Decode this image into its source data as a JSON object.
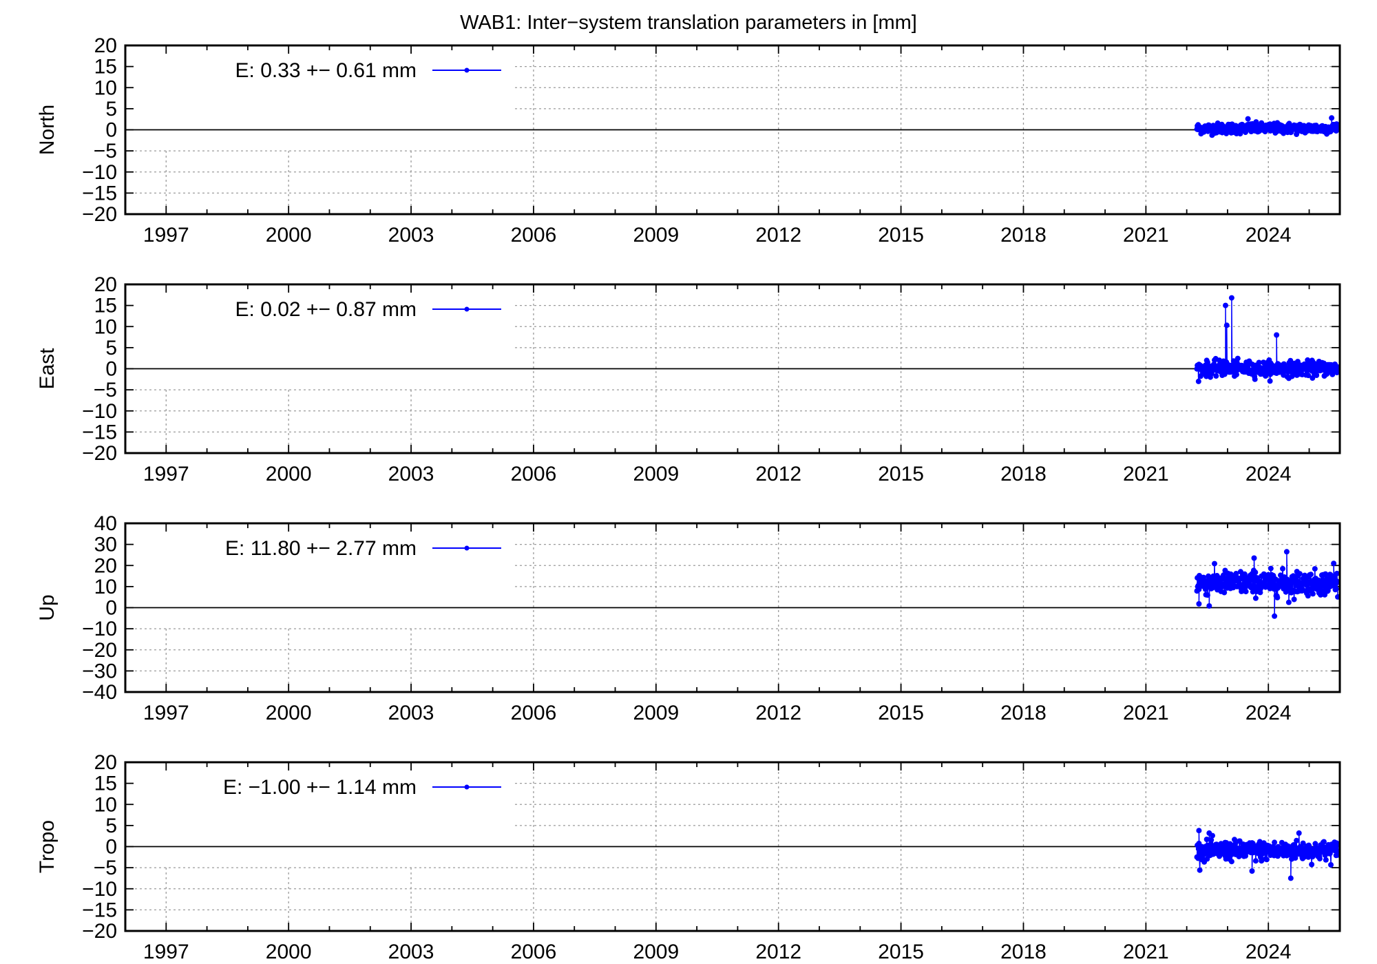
{
  "colors": {
    "series": "#0000ff",
    "axis": "#000000",
    "grid": "#9a9a9a"
  },
  "chart_data": {
    "type": "scatter",
    "title": "WAB1: Inter−system translation parameters in [mm]",
    "xlabel": "",
    "xlim": [
      1996.0,
      2025.75
    ],
    "xticks": [
      1997,
      2000,
      2003,
      2006,
      2009,
      2012,
      2015,
      2018,
      2021,
      2024
    ],
    "grid": true,
    "legend_position": "top-left",
    "x_start": 2022.25,
    "x_end": 2025.7,
    "sample_step_years": 0.01,
    "panels": [
      {
        "ylabel": "North",
        "ylim": [
          -20,
          20
        ],
        "yticks": [
          -20,
          -15,
          -10,
          -5,
          0,
          5,
          10,
          15,
          20
        ],
        "ytick_labels": [
          "−20",
          "−15",
          "−10",
          "−5",
          "0",
          "5",
          "10",
          "15",
          "20"
        ],
        "legend": "E:   0.33 +− 0.61 mm",
        "mean": 0.33,
        "std": 0.61,
        "outliers": [
          [
            2023.5,
            2.6
          ],
          [
            2025.55,
            2.8
          ]
        ]
      },
      {
        "ylabel": "East",
        "ylim": [
          -20,
          20
        ],
        "yticks": [
          -20,
          -15,
          -10,
          -5,
          0,
          5,
          10,
          15,
          20
        ],
        "ytick_labels": [
          "−20",
          "−15",
          "−10",
          "−5",
          "0",
          "5",
          "10",
          "15",
          "20"
        ],
        "legend": "E:   0.02 +− 0.87 mm",
        "mean": 0.02,
        "std": 0.87,
        "outliers": [
          [
            2022.95,
            15.0
          ],
          [
            2022.98,
            10.3
          ],
          [
            2023.1,
            16.8
          ],
          [
            2022.9,
            1.8
          ],
          [
            2024.2,
            8.0
          ]
        ]
      },
      {
        "ylabel": "Up",
        "ylim": [
          -40,
          40
        ],
        "yticks": [
          -40,
          -30,
          -20,
          -10,
          0,
          10,
          20,
          30,
          40
        ],
        "ytick_labels": [
          "−40",
          "−30",
          "−20",
          "−10",
          "0",
          "10",
          "20",
          "30",
          "40"
        ],
        "legend": "E:  11.80 +− 2.77 mm",
        "mean": 11.8,
        "std": 2.77,
        "outliers": [
          [
            2022.3,
            1.8
          ],
          [
            2022.55,
            0.8
          ],
          [
            2023.65,
            23.5
          ],
          [
            2024.15,
            -4.0
          ],
          [
            2024.45,
            26.5
          ],
          [
            2024.5,
            2.5
          ],
          [
            2025.6,
            21.0
          ]
        ]
      },
      {
        "ylabel": "Tropo",
        "ylim": [
          -20,
          20
        ],
        "yticks": [
          -20,
          -15,
          -10,
          -5,
          0,
          5,
          10,
          15,
          20
        ],
        "ytick_labels": [
          "−20",
          "−15",
          "−10",
          "−5",
          "0",
          "5",
          "10",
          "15",
          "20"
        ],
        "legend": "E:  −1.00 +− 1.14 mm",
        "mean": -1.0,
        "std": 1.14,
        "outliers": [
          [
            2022.3,
            3.8
          ],
          [
            2022.55,
            3.2
          ],
          [
            2023.6,
            -5.8
          ],
          [
            2024.55,
            -7.5
          ],
          [
            2024.75,
            3.2
          ]
        ]
      }
    ]
  }
}
